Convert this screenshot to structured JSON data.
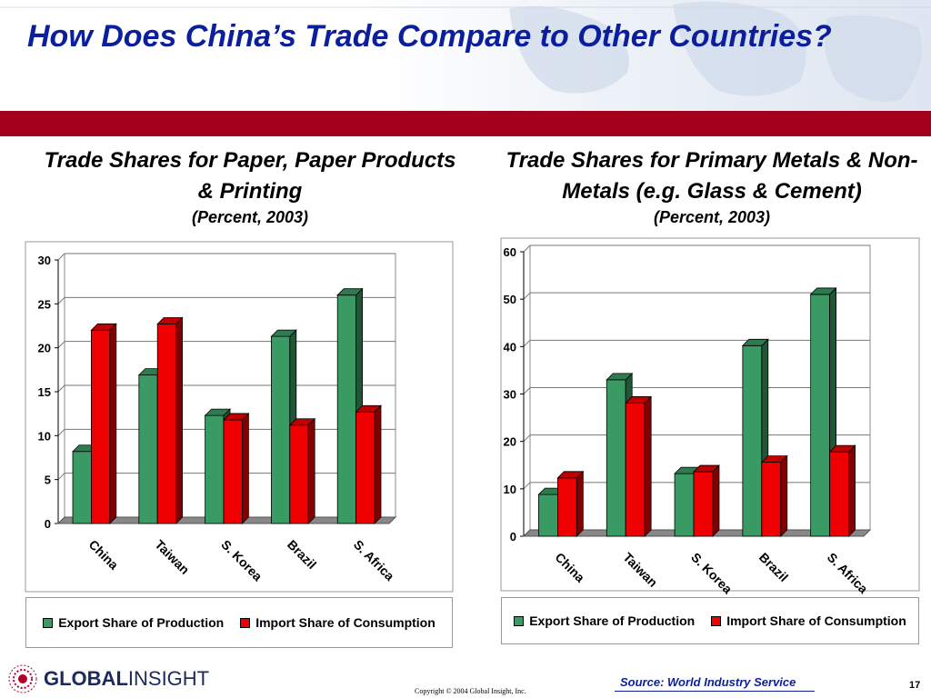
{
  "header": {
    "title": "How Does China’s Trade Compare to Other Countries?"
  },
  "colors": {
    "title_blue": "#0b1e9c",
    "band_red": "#a3001e",
    "export_green": "#3a9a63",
    "import_red": "#ee0000"
  },
  "chart_data": [
    {
      "type": "bar",
      "title": "Trade Shares for Paper, Paper Products & Printing",
      "subtitle": "(Percent, 2003)",
      "categories": [
        "China",
        "Taiwan",
        "S. Korea",
        "Brazil",
        "S. Africa"
      ],
      "series": [
        {
          "name": "Export Share of Production",
          "values": [
            8.2,
            16.9,
            12.3,
            21.3,
            26.0
          ]
        },
        {
          "name": "Import Share of Consumption",
          "values": [
            22.0,
            22.7,
            11.8,
            11.2,
            12.7
          ]
        }
      ],
      "ylim": [
        0,
        30
      ],
      "yticks": [
        0,
        5,
        10,
        15,
        20,
        25,
        30
      ],
      "grid": true,
      "legend": "bottom"
    },
    {
      "type": "bar",
      "title": "Trade Shares for Primary Metals & Non-Metals (e.g. Glass & Cement)",
      "subtitle": "(Percent, 2003)",
      "categories": [
        "China",
        "Taiwan",
        "S. Korea",
        "Brazil",
        "S. Africa"
      ],
      "series": [
        {
          "name": "Export Share of Production",
          "values": [
            8.8,
            33.0,
            13.2,
            40.2,
            51.0
          ]
        },
        {
          "name": "Import Share of Consumption",
          "values": [
            12.3,
            28.1,
            13.6,
            15.6,
            17.8
          ]
        }
      ],
      "ylim": [
        0,
        60
      ],
      "yticks": [
        0,
        10,
        20,
        30,
        40,
        50,
        60
      ],
      "grid": true,
      "legend": "bottom"
    }
  ],
  "footer": {
    "logo_bold": "GLOBAL",
    "logo_light": "INSIGHT",
    "copyright": "Copyright © 2004 Global Insight, Inc.",
    "source": "Source: World Industry Service",
    "page_number": "17"
  }
}
